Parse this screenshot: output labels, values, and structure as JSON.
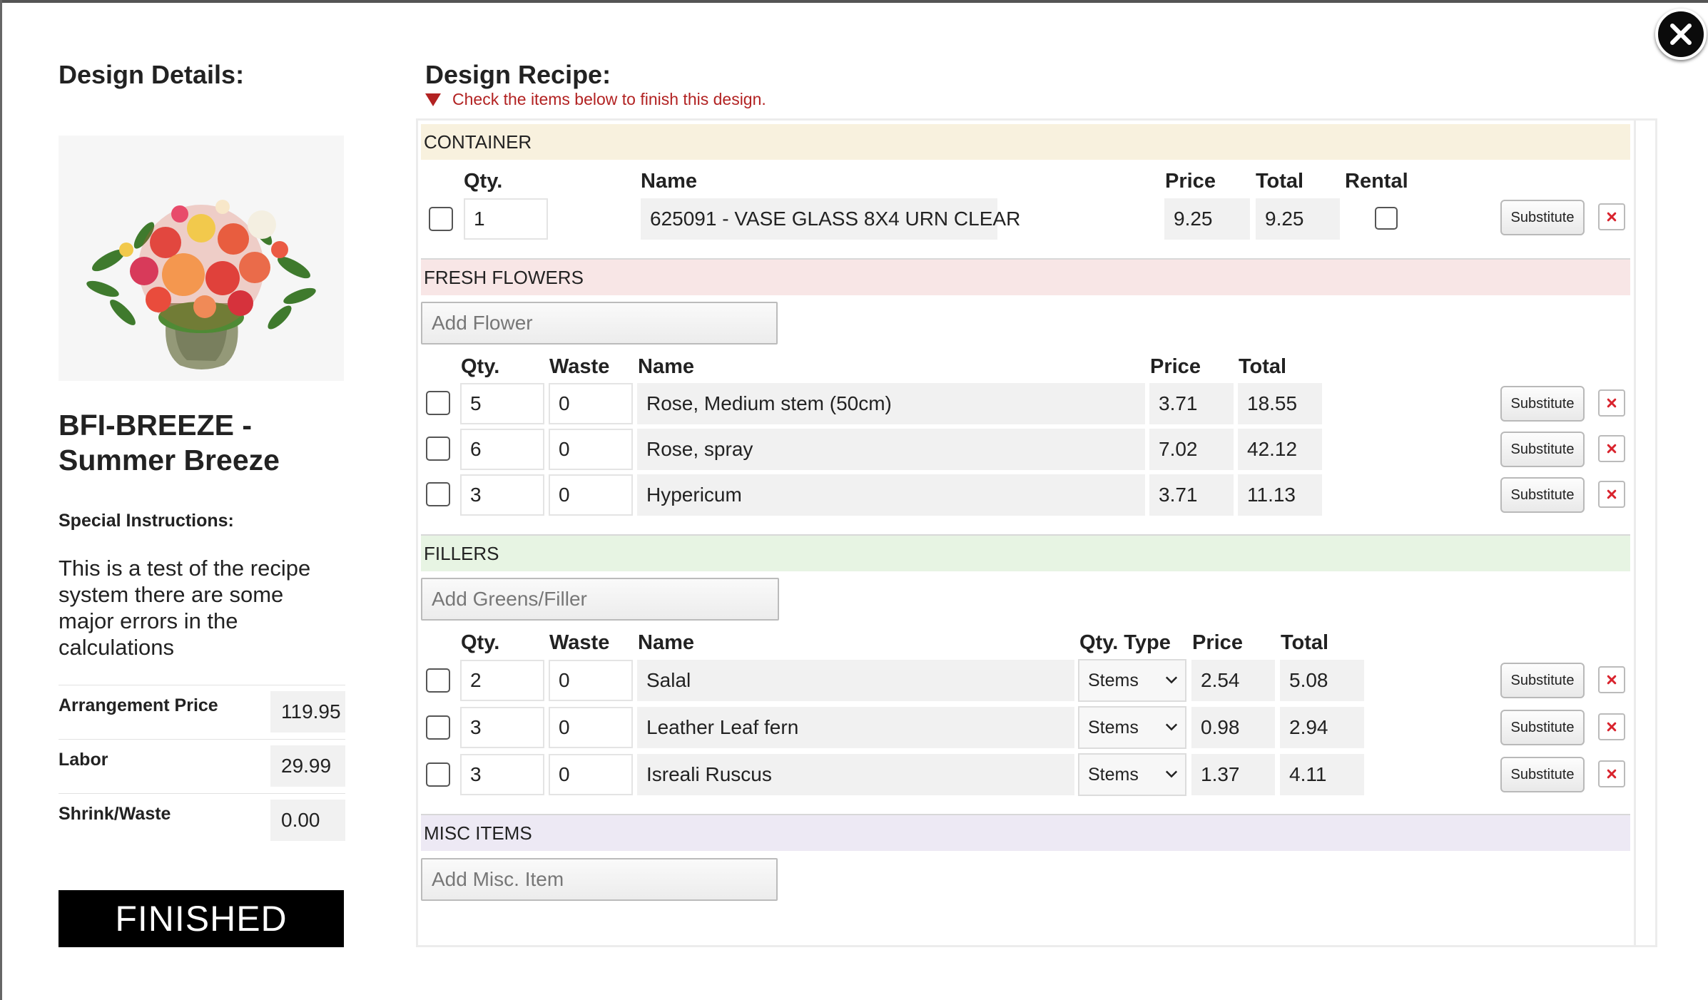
{
  "colors": {
    "hint": "#b22222",
    "container_bg": "#f8f1de",
    "fresh_bg": "#f8e6e6",
    "fillers_bg": "#e7f4e3",
    "misc_bg": "#ede9f4",
    "delete_x": "#d9232d"
  },
  "close_icon": "close-icon",
  "left": {
    "title": "Design Details:",
    "design_name": "BFI-BREEZE - Summer Breeze",
    "special_instructions_label": "Special Instructions:",
    "special_instructions_text": "This is a test of the recipe system there are some major errors in the calculations",
    "summary": [
      {
        "label": "Arrangement Price",
        "value": "119.95"
      },
      {
        "label": "Labor",
        "value": "29.99"
      },
      {
        "label": "Shrink/Waste",
        "value": "0.00"
      }
    ],
    "finished_label": "FINISHED"
  },
  "recipe": {
    "title": "Design Recipe:",
    "hint": "Check the items below to finish this design.",
    "substitute_label": "Substitute",
    "container": {
      "section_label": "CONTAINER",
      "headers": {
        "qty": "Qty.",
        "name": "Name",
        "price": "Price",
        "total": "Total",
        "rental": "Rental"
      },
      "row": {
        "qty": "1",
        "name": "625091 - VASE GLASS 8X4 URN CLEAR",
        "price": "9.25",
        "total": "9.25"
      }
    },
    "fresh": {
      "section_label": "FRESH FLOWERS",
      "add_label": "Add Flower",
      "headers": {
        "qty": "Qty.",
        "waste": "Waste",
        "name": "Name",
        "price": "Price",
        "total": "Total"
      },
      "rows": [
        {
          "qty": "5",
          "waste": "0",
          "name": "Rose, Medium stem  (50cm)",
          "price": "3.71",
          "total": "18.55"
        },
        {
          "qty": "6",
          "waste": "0",
          "name": "Rose, spray",
          "price": "7.02",
          "total": "42.12"
        },
        {
          "qty": "3",
          "waste": "0",
          "name": "Hypericum",
          "price": "3.71",
          "total": "11.13"
        }
      ]
    },
    "fillers": {
      "section_label": "FILLERS",
      "add_label": "Add Greens/Filler",
      "headers": {
        "qty": "Qty.",
        "waste": "Waste",
        "name": "Name",
        "qty_type": "Qty. Type",
        "price": "Price",
        "total": "Total"
      },
      "rows": [
        {
          "qty": "2",
          "waste": "0",
          "name": "Salal",
          "qty_type": "Stems",
          "price": "2.54",
          "total": "5.08"
        },
        {
          "qty": "3",
          "waste": "0",
          "name": "Leather Leaf fern",
          "qty_type": "Stems",
          "price": "0.98",
          "total": "2.94"
        },
        {
          "qty": "3",
          "waste": "0",
          "name": "Isreali Ruscus",
          "qty_type": "Stems",
          "price": "1.37",
          "total": "4.11"
        }
      ]
    },
    "misc": {
      "section_label": "MISC ITEMS",
      "add_label": "Add Misc. Item"
    }
  }
}
